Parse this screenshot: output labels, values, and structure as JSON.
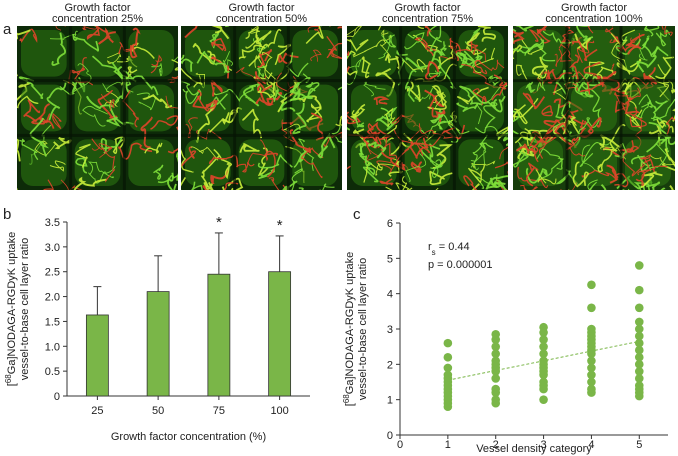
{
  "panel_labels": [
    "a",
    "b",
    "c"
  ],
  "images": [
    {
      "title_line1": "Growth factor",
      "title_line2": "concentration 25%"
    },
    {
      "title_line1": "Growth factor",
      "title_line2": "concentration 50%"
    },
    {
      "title_line1": "Growth factor",
      "title_line2": "concentration 75%"
    },
    {
      "title_line1": "Growth factor",
      "title_line2": "concentration 100%"
    }
  ],
  "chart_data": [
    {
      "type": "bar",
      "xlabel": "Growth factor concentration (%)",
      "ylabel": {
        "pre": "[",
        "sup": "68",
        "main": "Ga]NODAGA-RGDyK uptake",
        "line2": "vessel-to-base cell layer ratio"
      },
      "categories": [
        "25",
        "50",
        "75",
        "100"
      ],
      "values": [
        1.63,
        2.1,
        2.45,
        2.5
      ],
      "errors": [
        0.57,
        0.72,
        0.83,
        0.72
      ],
      "annotations": [
        {
          "x": "75",
          "text": "*"
        },
        {
          "x": "100",
          "text": "*"
        }
      ],
      "color": "#7ab648",
      "ylim": [
        0,
        3.5
      ],
      "yticks": [
        0,
        0.5,
        {
          "value": 1,
          "label": "1.0"
        },
        1.5,
        {
          "value": 2,
          "label": "2.0"
        },
        2.5,
        {
          "value": 3,
          "label": "3.0"
        },
        3.5
      ]
    },
    {
      "type": "scatter",
      "xlabel": "Vessel density category",
      "ylabel": {
        "pre": "[",
        "sup": "68",
        "main": "Ga]NODAGA-RGDyK uptake",
        "line2": "vessel-to-base cell layer ratio"
      },
      "stats": {
        "r_symbol": "r",
        "r_sub": "s",
        "r_text": " = 0.44",
        "p_text": "p = 0.000001"
      },
      "color": "#7ab648",
      "x": [
        1,
        1,
        1,
        1,
        1,
        1,
        1,
        1,
        1,
        1,
        1,
        1,
        1,
        2,
        2,
        2,
        2,
        2,
        2,
        2,
        2,
        2,
        2,
        2,
        2,
        2,
        3,
        3,
        3,
        3,
        3,
        3,
        3,
        3,
        3,
        3,
        3,
        3,
        3,
        3,
        4,
        4,
        4,
        4,
        4,
        4,
        4,
        4,
        4,
        4,
        4,
        4,
        4,
        4,
        4,
        4,
        5,
        5,
        5,
        5,
        5,
        5,
        5,
        5,
        5,
        5,
        5,
        5,
        5,
        5,
        5,
        5
      ],
      "y": [
        2.6,
        2.2,
        1.9,
        1.7,
        1.6,
        1.5,
        1.4,
        1.3,
        1.2,
        1.1,
        1.0,
        0.9,
        0.8,
        2.85,
        2.7,
        2.5,
        2.3,
        2.1,
        2.0,
        1.9,
        1.8,
        1.6,
        1.3,
        1.2,
        1.0,
        0.9,
        3.05,
        2.9,
        2.7,
        2.5,
        2.3,
        2.1,
        2.0,
        1.9,
        1.8,
        1.7,
        1.5,
        1.4,
        1.3,
        1.0,
        4.25,
        3.6,
        3.0,
        2.9,
        2.8,
        2.7,
        2.6,
        2.5,
        2.4,
        2.3,
        2.1,
        1.9,
        1.7,
        1.5,
        1.3,
        1.2,
        4.8,
        4.1,
        3.6,
        3.2,
        3.0,
        2.8,
        2.6,
        2.4,
        2.2,
        2.0,
        1.8,
        1.6,
        1.4,
        1.3,
        1.2,
        1.1
      ],
      "trendline": {
        "x": [
          1,
          5
        ],
        "y": [
          1.55,
          2.65
        ]
      },
      "xlim": [
        0,
        5.6
      ],
      "xticks": [
        0,
        1,
        2,
        3,
        4,
        5
      ],
      "ylim": [
        0,
        6
      ],
      "yticks": [
        0,
        1,
        2,
        3,
        4,
        5,
        6
      ]
    }
  ]
}
